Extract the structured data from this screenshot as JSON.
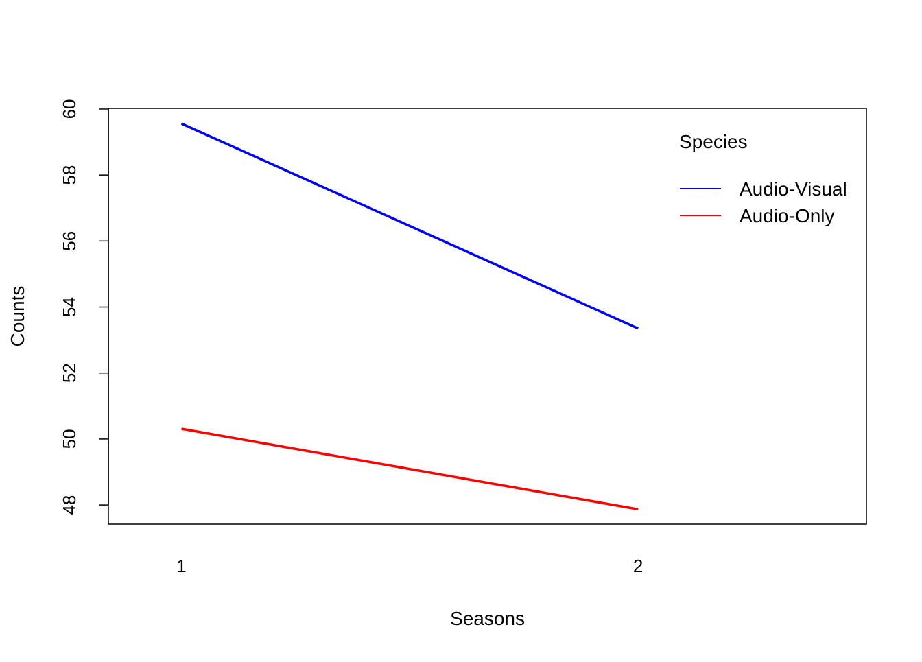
{
  "chart_data": {
    "type": "line",
    "xlabel": "Seasons",
    "ylabel": "Counts",
    "x": [
      1,
      2
    ],
    "xticks": [
      1,
      2
    ],
    "xlim": [
      0.84,
      2.5
    ],
    "yticks": [
      48,
      50,
      52,
      54,
      56,
      58,
      60
    ],
    "ylim": [
      47.42,
      60.02
    ],
    "series": [
      {
        "name": "Audio-Visual",
        "color": "#0000ff",
        "values": [
          59.56,
          53.35
        ]
      },
      {
        "name": "Audio-Only",
        "color": "#ff0000",
        "values": [
          50.31,
          47.87
        ]
      }
    ],
    "legend": {
      "title": "Species",
      "position": "top-right"
    },
    "grid": false
  }
}
